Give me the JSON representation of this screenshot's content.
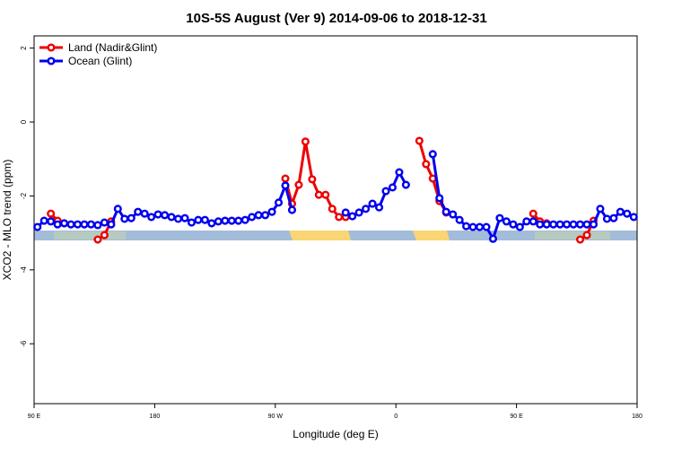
{
  "chart_data": {
    "type": "line",
    "title": "10S-5S August (Ver 9)   2014-09-06 to 2018-12-31",
    "x_label": "Longitude (deg E)",
    "y_label": "XCO2 - MLO trend (ppm)",
    "x": [
      92.5,
      97.5,
      102.5,
      107.5,
      112.5,
      117.5,
      122.5,
      127.5,
      132.5,
      137.5,
      142.5,
      147.5,
      152.5,
      157.5,
      162.5,
      167.5,
      172.5,
      177.5,
      182.5,
      187.5,
      192.5,
      197.5,
      202.5,
      207.5,
      212.5,
      217.5,
      222.5,
      227.5,
      232.5,
      237.5,
      242.5,
      247.5,
      252.5,
      257.5,
      262.5,
      267.5,
      272.5,
      277.5,
      282.5,
      287.5,
      292.5,
      297.5,
      302.5,
      307.5,
      312.5,
      317.5,
      322.5,
      327.5,
      332.5,
      337.5,
      342.5,
      347.5,
      352.5,
      357.5,
      362.5,
      367.5,
      372.5,
      377.5,
      382.5,
      387.5,
      392.5,
      397.5,
      402.5,
      407.5,
      412.5,
      417.5,
      422.5,
      427.5,
      432.5,
      437.5,
      442.5,
      447.5,
      452.5,
      457.5,
      462.5,
      467.5,
      472.5,
      477.5,
      482.5,
      487.5,
      492.5,
      497.5,
      502.5,
      507.5,
      512.5,
      517.5,
      522.5,
      527.5,
      532.5,
      537.5
    ],
    "series": [
      {
        "name": "Land (Nadir&Glint)",
        "color": "#ee0000",
        "values": [
          null,
          null,
          -2.48,
          -2.67,
          -2.74,
          null,
          null,
          null,
          null,
          -3.18,
          -3.06,
          -2.69,
          null,
          null,
          null,
          null,
          null,
          null,
          null,
          null,
          null,
          null,
          null,
          null,
          null,
          null,
          null,
          null,
          null,
          null,
          null,
          null,
          null,
          null,
          null,
          null,
          null,
          -1.53,
          -2.21,
          -1.7,
          -0.53,
          -1.55,
          -1.97,
          -1.97,
          -2.35,
          -2.57,
          -2.57,
          null,
          null,
          null,
          null,
          null,
          null,
          null,
          null,
          null,
          null,
          -0.51,
          -1.14,
          -1.53,
          -2.14,
          -2.45,
          null,
          null,
          null,
          null,
          null,
          null,
          null,
          null,
          null,
          null,
          null,
          null,
          -2.48,
          -2.69,
          -2.74,
          null,
          null,
          null,
          null,
          -3.18,
          -3.06,
          -2.67,
          null,
          null,
          null,
          null,
          null,
          null
        ]
      },
      {
        "name": "Ocean (Glint)",
        "color": "#0000ee",
        "values": [
          -2.84,
          -2.67,
          -2.69,
          -2.77,
          -2.74,
          -2.77,
          -2.77,
          -2.77,
          -2.77,
          -2.79,
          -2.72,
          -2.77,
          -2.35,
          -2.62,
          -2.6,
          -2.43,
          -2.48,
          -2.57,
          -2.5,
          -2.52,
          -2.57,
          -2.62,
          -2.6,
          -2.72,
          -2.65,
          -2.65,
          -2.74,
          -2.69,
          -2.67,
          -2.67,
          -2.67,
          -2.65,
          -2.57,
          -2.52,
          -2.52,
          -2.43,
          -2.18,
          -1.72,
          -2.38,
          null,
          null,
          null,
          null,
          null,
          null,
          null,
          -2.45,
          -2.55,
          -2.45,
          -2.35,
          -2.21,
          -2.31,
          -1.87,
          -1.77,
          -1.36,
          -1.7,
          null,
          null,
          null,
          -0.87,
          -2.06,
          -2.43,
          -2.5,
          -2.65,
          -2.82,
          -2.84,
          -2.84,
          -2.84,
          -3.16,
          -2.6,
          -2.69,
          -2.77,
          -2.84,
          -2.69,
          -2.69,
          -2.77,
          -2.77,
          -2.77,
          -2.77,
          -2.77,
          -2.77,
          -2.77,
          -2.77,
          -2.77,
          -2.35,
          -2.62,
          -2.6,
          -2.43,
          -2.48,
          -2.57
        ]
      }
    ],
    "xlim": [
      90,
      540
    ],
    "xticks": [
      {
        "value": 90,
        "label": "90 E"
      },
      {
        "value": 180,
        "label": "180"
      },
      {
        "value": 270,
        "label": "90 W"
      },
      {
        "value": 360,
        "label": "0"
      },
      {
        "value": 450,
        "label": "90 E"
      },
      {
        "value": 540,
        "label": "180"
      }
    ],
    "ylim": [
      -7.62,
      2.33
    ],
    "yticks": [
      2,
      0,
      -2,
      -4,
      -6
    ],
    "legend": "topleft"
  }
}
